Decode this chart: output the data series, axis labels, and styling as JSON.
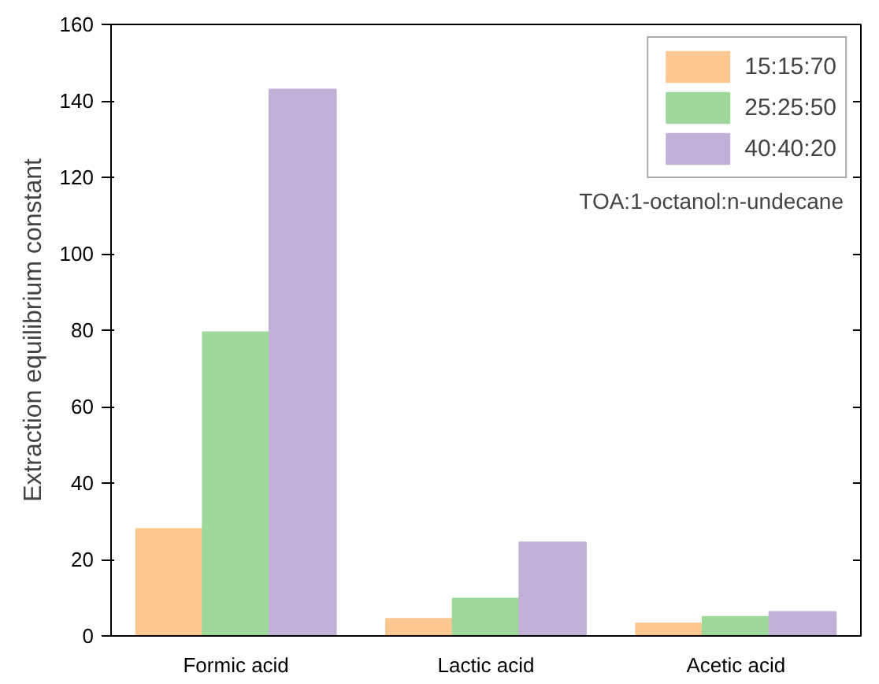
{
  "chart_data": {
    "type": "bar",
    "ylabel": "Extraction equilibrium constant",
    "categories": [
      "Formic acid",
      "Lactic acid",
      "Acetic acid"
    ],
    "series": [
      {
        "name": "15:15:70",
        "color": "#fdc791",
        "values": [
          28,
          4.5,
          3.3
        ]
      },
      {
        "name": "25:25:50",
        "color": "#9ed89a",
        "values": [
          79.5,
          9.8,
          5
        ]
      },
      {
        "name": "40:40:20",
        "color": "#c2b0d6",
        "values": [
          143,
          24.5,
          6.3
        ]
      }
    ],
    "ylim": [
      0,
      160
    ],
    "yticks": [
      0,
      20,
      40,
      60,
      80,
      100,
      120,
      140,
      160
    ],
    "legend": "top right",
    "grid": false,
    "annotations": [
      "TOA:1-octanol:n-undecane"
    ]
  }
}
